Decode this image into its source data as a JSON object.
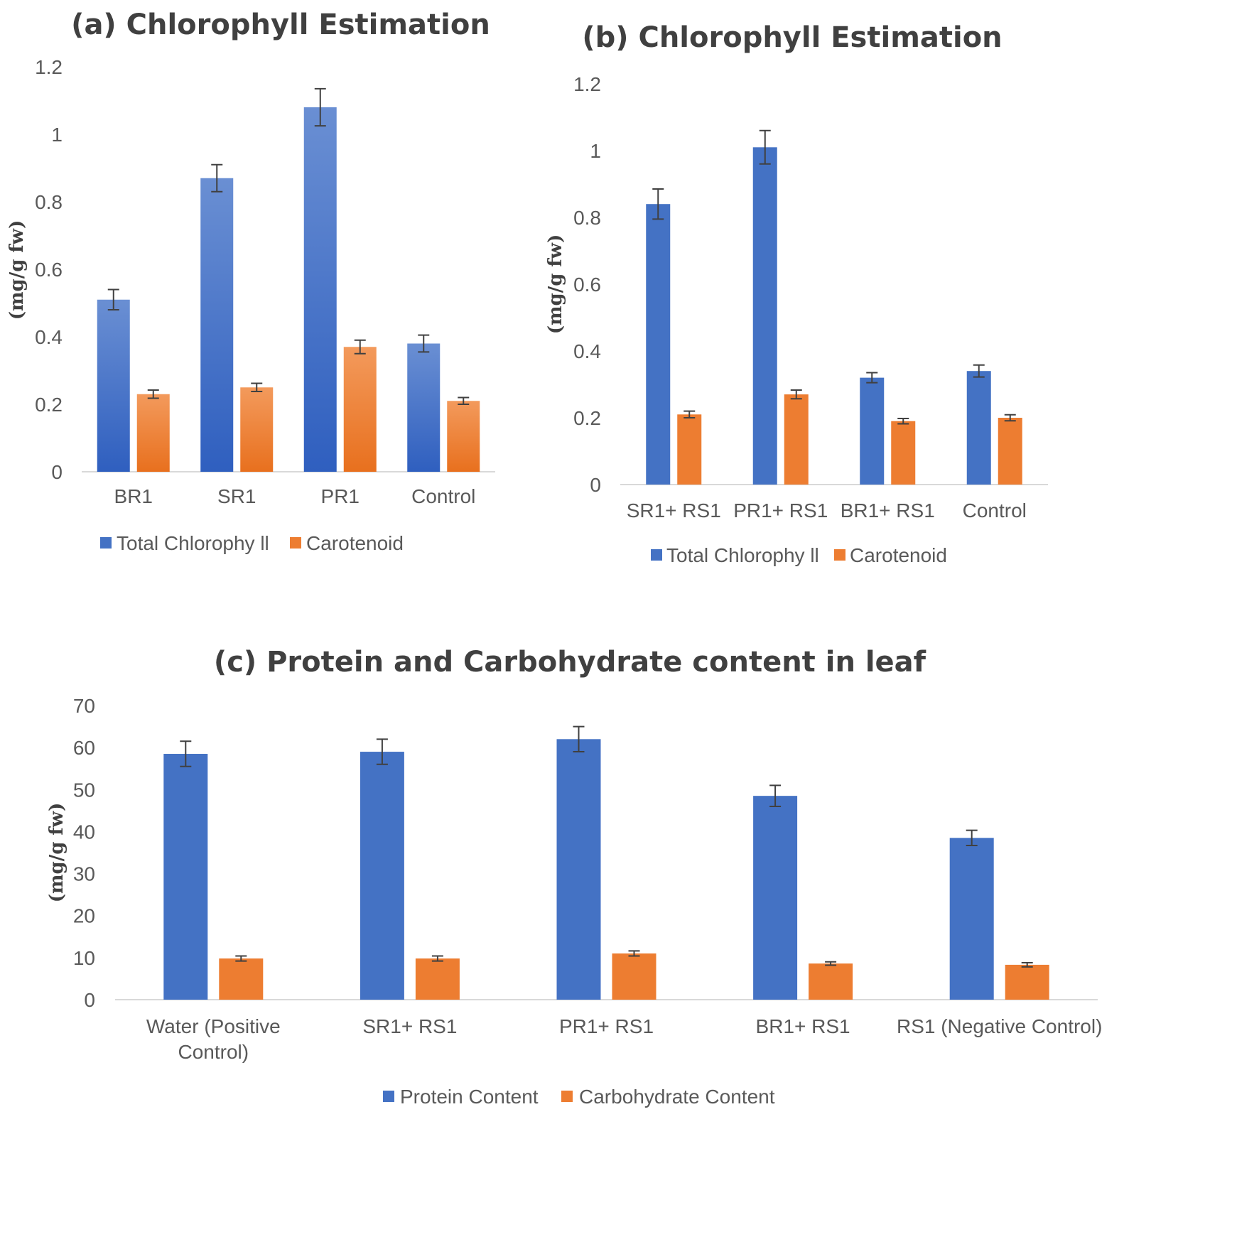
{
  "colors": {
    "primary": "#4472c4",
    "primary_light": "#6a8fd3",
    "secondary": "#ed7d31",
    "secondary_light": "#f39a5c"
  },
  "chart_data": [
    {
      "id": "a",
      "type": "bar",
      "title": "(a) Chlorophyll Estimation",
      "ylabel": "(mg/g fw)",
      "xlabel": "",
      "ylim": [
        0,
        1.2
      ],
      "ticks": [
        "0",
        "0.2",
        "0.4",
        "0.6",
        "0.8",
        "1",
        "1.2"
      ],
      "tick_values": [
        0,
        0.2,
        0.4,
        0.6,
        0.8,
        1,
        1.2
      ],
      "categories": [
        "BR1",
        "SR1",
        "PR1",
        "Control"
      ],
      "gradient": true,
      "legend_position": "bottom",
      "series": [
        {
          "name": "Total Chlorophyll",
          "legend_label": "Total Chlorophy ll",
          "values": [
            0.51,
            0.87,
            1.08,
            0.38
          ],
          "errors": [
            0.03,
            0.04,
            0.055,
            0.025
          ]
        },
        {
          "name": "Carotenoid",
          "legend_label": "Carotenoid",
          "values": [
            0.23,
            0.25,
            0.37,
            0.21
          ],
          "errors": [
            0.012,
            0.012,
            0.02,
            0.01
          ]
        }
      ]
    },
    {
      "id": "b",
      "type": "bar",
      "title": "(b) Chlorophyll Estimation",
      "ylabel": "(mg/g fw)",
      "xlabel": "",
      "ylim": [
        0,
        1.2
      ],
      "ticks": [
        "0",
        "0.2",
        "0.4",
        "0.6",
        "0.8",
        "1",
        "1.2"
      ],
      "tick_values": [
        0,
        0.2,
        0.4,
        0.6,
        0.8,
        1,
        1.2
      ],
      "categories": [
        "SR1+ RS1",
        "PR1+ RS1",
        "BR1+ RS1",
        "Control"
      ],
      "gradient": false,
      "legend_position": "bottom",
      "series": [
        {
          "name": "Total Chlorophyll",
          "legend_label": "Total Chlorophy ll",
          "values": [
            0.84,
            1.01,
            0.32,
            0.34
          ],
          "errors": [
            0.045,
            0.05,
            0.015,
            0.018
          ]
        },
        {
          "name": "Carotenoid",
          "legend_label": "Carotenoid",
          "values": [
            0.21,
            0.27,
            0.19,
            0.2
          ],
          "errors": [
            0.01,
            0.013,
            0.008,
            0.009
          ]
        }
      ]
    },
    {
      "id": "c",
      "type": "bar",
      "title": "(c) Protein and Carbohydrate content in leaf",
      "ylabel": "(mg/g fw)",
      "xlabel": "",
      "ylim": [
        0,
        70
      ],
      "ticks": [
        "0",
        "10",
        "20",
        "30",
        "40",
        "50",
        "60",
        "70"
      ],
      "tick_values": [
        0,
        10,
        20,
        30,
        40,
        50,
        60,
        70
      ],
      "categories": [
        "Water (Positive Control)",
        "SR1+ RS1",
        "PR1+ RS1",
        "BR1+ RS1",
        "RS1 (Negative Control)"
      ],
      "category_lines": [
        [
          "Water (Positive",
          "Control)"
        ],
        [
          "SR1+ RS1"
        ],
        [
          "PR1+ RS1"
        ],
        [
          "BR1+ RS1"
        ],
        [
          "RS1 (Negative Control)"
        ]
      ],
      "gradient": false,
      "legend_position": "bottom",
      "series": [
        {
          "name": "Protein Content",
          "legend_label": "Protein Content",
          "values": [
            58.5,
            59,
            62,
            48.5,
            38.5
          ],
          "errors": [
            3,
            3,
            3,
            2.5,
            1.8
          ]
        },
        {
          "name": "Carbohydrate Content",
          "legend_label": "Carbohydrate Content",
          "values": [
            9.8,
            9.8,
            11,
            8.6,
            8.3
          ],
          "errors": [
            0.6,
            0.6,
            0.6,
            0.4,
            0.5
          ]
        }
      ]
    }
  ]
}
